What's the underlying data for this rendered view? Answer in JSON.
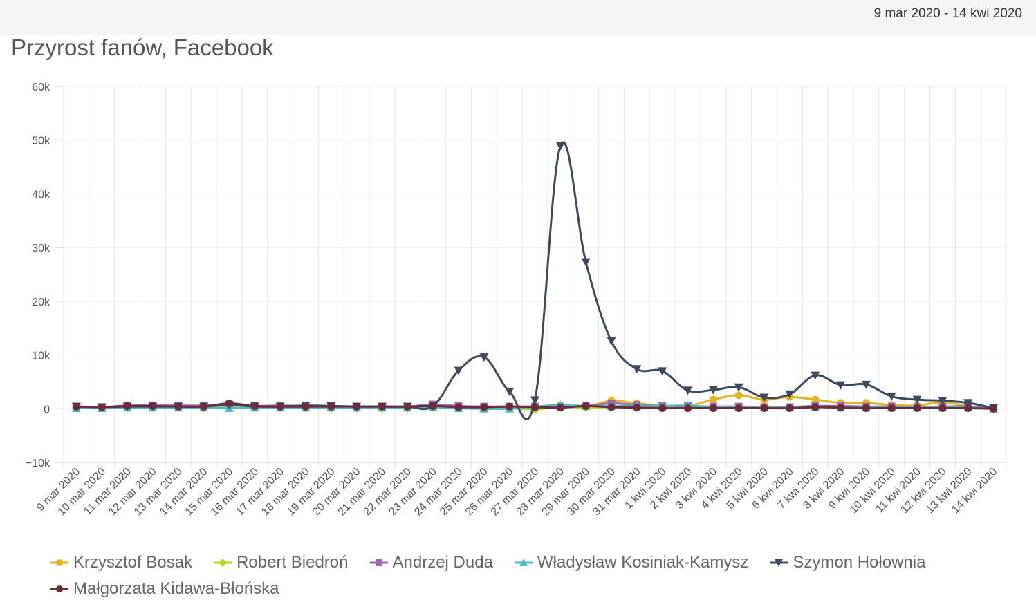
{
  "header": {
    "date_range": "9 mar 2020 - 14 kwi 2020"
  },
  "chart_data": {
    "type": "line",
    "title": "Przyrost fanów, Facebook",
    "xlabel": "",
    "ylabel": "",
    "ylim": [
      -10000,
      60000
    ],
    "y_ticks": [
      -10000,
      0,
      10000,
      20000,
      30000,
      40000,
      50000,
      60000
    ],
    "y_tick_labels": [
      "−10k",
      "0",
      "10k",
      "20k",
      "30k",
      "40k",
      "50k",
      "60k"
    ],
    "grid": true,
    "legend_position": "bottom-left",
    "categories": [
      "9 mar 2020",
      "10 mar 2020",
      "11 mar 2020",
      "12 mar 2020",
      "13 mar 2020",
      "14 mar 2020",
      "15 mar 2020",
      "16 mar 2020",
      "17 mar 2020",
      "18 mar 2020",
      "19 mar 2020",
      "20 mar 2020",
      "21 mar 2020",
      "22 mar 2020",
      "23 mar 2020",
      "24 mar 2020",
      "25 mar 2020",
      "26 mar 2020",
      "27 mar 2020",
      "28 mar 2020",
      "29 mar 2020",
      "30 mar 2020",
      "31 mar 2020",
      "1 kwi 2020",
      "2 kwi 2020",
      "3 kwi 2020",
      "4 kwi 2020",
      "5 kwi 2020",
      "6 kwi 2020",
      "7 kwi 2020",
      "8 kwi 2020",
      "9 kwi 2020",
      "10 kwi 2020",
      "11 kwi 2020",
      "12 kwi 2020",
      "13 kwi 2020",
      "14 kwi 2020"
    ],
    "series": [
      {
        "name": "Krzysztof Bosak",
        "color": "#e6b422",
        "marker": "circle",
        "values": [
          300,
          200,
          400,
          400,
          400,
          400,
          500,
          400,
          400,
          300,
          300,
          300,
          300,
          300,
          400,
          300,
          200,
          300,
          -100,
          600,
          400,
          1500,
          1000,
          600,
          500,
          1700,
          2500,
          1700,
          2200,
          1700,
          1100,
          1100,
          700,
          600,
          1200,
          500,
          0
        ]
      },
      {
        "name": "Robert Biedroń",
        "color": "#b5d91d",
        "marker": "diamond",
        "values": [
          200,
          200,
          200,
          200,
          200,
          200,
          200,
          200,
          200,
          100,
          100,
          100,
          100,
          100,
          200,
          100,
          100,
          100,
          -100,
          300,
          200,
          300,
          300,
          200,
          200,
          300,
          300,
          200,
          200,
          400,
          300,
          300,
          300,
          200,
          300,
          200,
          0
        ]
      },
      {
        "name": "Andrzej Duda",
        "color": "#9b68ad",
        "marker": "square",
        "values": [
          400,
          300,
          600,
          600,
          600,
          600,
          800,
          500,
          600,
          500,
          500,
          400,
          400,
          400,
          800,
          500,
          400,
          400,
          400,
          400,
          500,
          1000,
          700,
          500,
          500,
          400,
          400,
          300,
          300,
          500,
          500,
          400,
          400,
          300,
          400,
          400,
          0
        ]
      },
      {
        "name": "Władysław Kosiniak-Kamysz",
        "color": "#4cbdc4",
        "marker": "triangle",
        "values": [
          100,
          100,
          200,
          200,
          200,
          200,
          100,
          200,
          200,
          200,
          200,
          200,
          200,
          200,
          300,
          100,
          0,
          0,
          400,
          700,
          500,
          500,
          500,
          500,
          600,
          300,
          200,
          200,
          200,
          300,
          200,
          200,
          200,
          200,
          200,
          200,
          0
        ]
      },
      {
        "name": "Szymon Hołownia",
        "color": "#3d4a5c",
        "marker": "triangle-down",
        "values": [
          400,
          300,
          400,
          400,
          400,
          400,
          700,
          400,
          400,
          600,
          500,
          400,
          400,
          400,
          500,
          7100,
          9600,
          3200,
          1600,
          48900,
          27300,
          12600,
          7400,
          7000,
          3400,
          3500,
          4000,
          2100,
          2700,
          6200,
          4400,
          4500,
          2300,
          1700,
          1500,
          1100,
          100
        ]
      },
      {
        "name": "Małgorzata Kidawa-Błońska",
        "color": "#6b2c3a",
        "marker": "circle",
        "values": [
          400,
          300,
          500,
          500,
          400,
          400,
          1000,
          500,
          400,
          400,
          400,
          400,
          400,
          400,
          500,
          300,
          300,
          400,
          300,
          200,
          500,
          300,
          200,
          100,
          100,
          100,
          100,
          100,
          100,
          300,
          200,
          100,
          100,
          100,
          100,
          100,
          0
        ]
      }
    ]
  }
}
